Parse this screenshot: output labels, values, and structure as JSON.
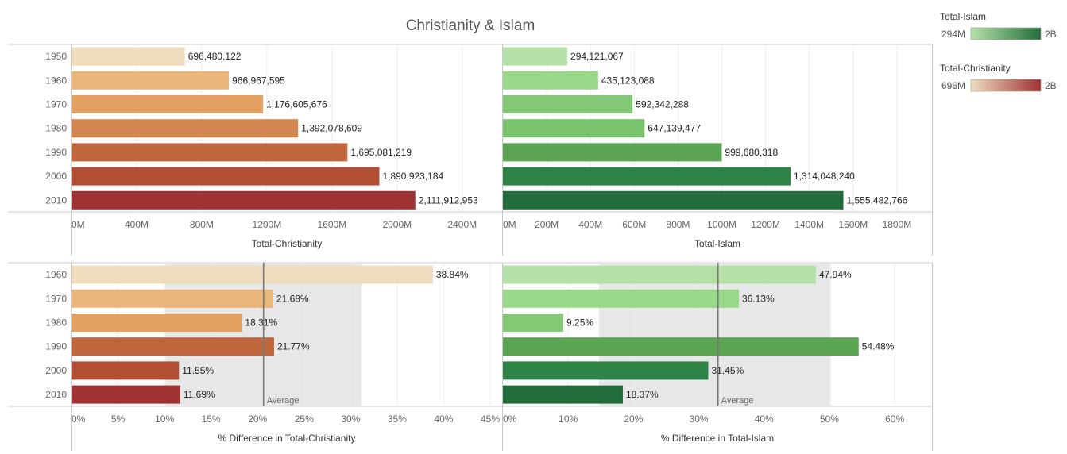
{
  "title": "Christianity & Islam",
  "legends": [
    {
      "title": "Total-Islam",
      "min_label": "294M",
      "max_label": "2B",
      "colors": [
        "#b5e1a8",
        "#236d3a"
      ]
    },
    {
      "title": "Total-Christianity",
      "min_label": "696M",
      "max_label": "2B",
      "colors": [
        "#efdcbe",
        "#9f3233"
      ]
    }
  ],
  "chart_data": [
    {
      "type": "bar",
      "orientation": "horizontal",
      "categories": [
        "1950",
        "1960",
        "1970",
        "1980",
        "1990",
        "2000",
        "2010"
      ],
      "values": [
        696480122,
        966967595,
        1176605676,
        1392078609,
        1695081219,
        1890923184,
        2111912953
      ],
      "data_labels": [
        "696,480,122",
        "966,967,595",
        "1,176,605,676",
        "1,392,078,609",
        "1,695,081,219",
        "1,890,923,184",
        "2,111,912,953"
      ],
      "colors": [
        "#efdcbe",
        "#eab67c",
        "#e2a161",
        "#d28753",
        "#c0663f",
        "#b24f35",
        "#9f3233"
      ],
      "xlabel": "Total-Christianity",
      "xlim": [
        0,
        2650000000
      ],
      "xticks": [
        0,
        400000000,
        800000000,
        1200000000,
        1600000000,
        2000000000,
        2400000000
      ],
      "xtick_labels": [
        "0M",
        "400M",
        "800M",
        "1200M",
        "1600M",
        "2000M",
        "2400M"
      ],
      "grid": true
    },
    {
      "type": "bar",
      "orientation": "horizontal",
      "categories": [
        "1950",
        "1960",
        "1970",
        "1980",
        "1990",
        "2000",
        "2010"
      ],
      "values": [
        294121067,
        435123088,
        592342288,
        647139477,
        999680318,
        1314048240,
        1555482766
      ],
      "data_labels": [
        "294,121,067",
        "435,123,088",
        "592,342,288",
        "647,139,477",
        "999,680,318",
        "1,314,048,240",
        "1,555,482,766"
      ],
      "colors": [
        "#b5e1a8",
        "#98d888",
        "#83c874",
        "#7ac26c",
        "#5ba552",
        "#2e8446",
        "#236d3a"
      ],
      "xlabel": "Total-Islam",
      "xlim": [
        0,
        1960000000
      ],
      "xticks": [
        0,
        200000000,
        400000000,
        600000000,
        800000000,
        1000000000,
        1200000000,
        1400000000,
        1600000000,
        1800000000
      ],
      "xtick_labels": [
        "0M",
        "200M",
        "400M",
        "600M",
        "800M",
        "1000M",
        "1200M",
        "1400M",
        "1600M",
        "1800M"
      ],
      "grid": true
    },
    {
      "type": "bar",
      "orientation": "horizontal",
      "categories": [
        "1960",
        "1970",
        "1980",
        "1990",
        "2000",
        "2010"
      ],
      "values": [
        38.84,
        21.68,
        18.31,
        21.77,
        11.55,
        11.69
      ],
      "data_labels": [
        "38.84%",
        "21.68%",
        "18.31%",
        "21.77%",
        "11.55%",
        "11.69%"
      ],
      "colors": [
        "#efdcbe",
        "#eab67c",
        "#e2a161",
        "#c0663f",
        "#b24f35",
        "#9f3233"
      ],
      "xlabel": "% Difference in Total-Christianity",
      "xlim": [
        0,
        45
      ],
      "xticks": [
        0,
        5,
        10,
        15,
        20,
        25,
        30,
        35,
        40,
        45
      ],
      "xtick_labels": [
        "0%",
        "5%",
        "10%",
        "15%",
        "20%",
        "25%",
        "30%",
        "35%",
        "40%",
        "45%"
      ],
      "reference_line": {
        "label": "Average",
        "value": 20.64
      },
      "reference_band": [
        10.1,
        31.2
      ],
      "grid": true
    },
    {
      "type": "bar",
      "orientation": "horizontal",
      "categories": [
        "1960",
        "1970",
        "1980",
        "1990",
        "2000",
        "2010"
      ],
      "values": [
        47.94,
        36.13,
        9.25,
        54.48,
        31.45,
        18.37
      ],
      "data_labels": [
        "47.94%",
        "36.13%",
        "9.25%",
        "54.48%",
        "31.45%",
        "18.37%"
      ],
      "colors": [
        "#b5e1a8",
        "#98d888",
        "#83c874",
        "#5ba552",
        "#2e8446",
        "#236d3a"
      ],
      "xlabel": "% Difference in Total-Islam",
      "xlim": [
        0,
        64
      ],
      "xticks": [
        0,
        10,
        20,
        30,
        40,
        50,
        60
      ],
      "xtick_labels": [
        "0%",
        "10%",
        "20%",
        "30%",
        "40%",
        "50%",
        "60%"
      ],
      "reference_line": {
        "label": "Average",
        "value": 32.94
      },
      "reference_band": [
        14.7,
        50.2
      ],
      "grid": true
    }
  ]
}
